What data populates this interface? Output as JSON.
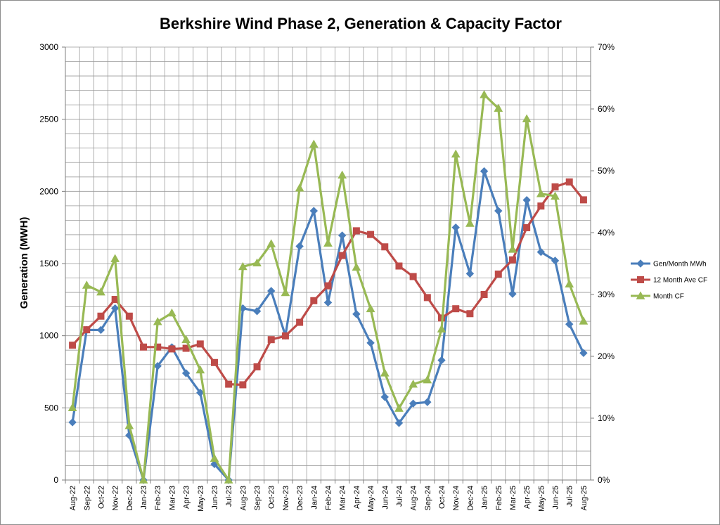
{
  "chart_data": {
    "type": "line",
    "title": "Berkshire Wind Phase 2, Generation & Capacity Factor",
    "ylabel": "Generation (MWH)",
    "ylim": [
      0,
      3000
    ],
    "y2lim": [
      0,
      0.7
    ],
    "yticks": [
      "0",
      "500",
      "1000",
      "1500",
      "2000",
      "2500",
      "3000"
    ],
    "y2ticks": [
      "0%",
      "10%",
      "20%",
      "30%",
      "40%",
      "50%",
      "60%",
      "70%"
    ],
    "grid": true,
    "legend_position": "right",
    "categories": [
      "Aug-22",
      "Sep-22",
      "Oct-22",
      "Nov-22",
      "Dec-22",
      "Jan-23",
      "Feb-23",
      "Mar-23",
      "Apr-23",
      "May-23",
      "Jun-23",
      "Jul-23",
      "Aug-23",
      "Sep-23",
      "Oct-23",
      "Nov-23",
      "Dec-23",
      "Jan-24",
      "Feb-24",
      "Mar-24",
      "Apr-24",
      "May-24",
      "Jun-24",
      "Jul-24",
      "Aug-24",
      "Sep-24",
      "Oct-24",
      "Nov-24",
      "Dec-24",
      "Jan-25",
      "Feb-25",
      "Mar-25",
      "Apr-25",
      "May-25",
      "Jun-25",
      "Jul-25",
      "Aug-25"
    ],
    "series": [
      {
        "name": "Gen/Month MWh",
        "axis": "left",
        "color": "#4a7ebb",
        "marker": "diamond",
        "values": [
          400,
          1040,
          1040,
          1190,
          310,
          0,
          790,
          920,
          740,
          605,
          110,
          0,
          1190,
          1170,
          1310,
          1000,
          1620,
          1865,
          1230,
          1695,
          1150,
          950,
          575,
          395,
          530,
          540,
          830,
          1750,
          1430,
          2140,
          1865,
          1290,
          1940,
          1580,
          1520,
          1080,
          880
        ]
      },
      {
        "name": "12 Month Ave CF",
        "axis": "right",
        "color": "#be4b48",
        "marker": "square",
        "values": [
          0.218,
          0.243,
          0.265,
          0.292,
          0.265,
          0.215,
          0.215,
          0.212,
          0.213,
          0.22,
          0.19,
          0.155,
          0.154,
          0.183,
          0.227,
          0.233,
          0.255,
          0.29,
          0.314,
          0.363,
          0.403,
          0.397,
          0.377,
          0.346,
          0.329,
          0.295,
          0.262,
          0.277,
          0.269,
          0.3,
          0.333,
          0.356,
          0.408,
          0.443,
          0.474,
          0.482,
          0.453
        ]
      },
      {
        "name": "Month CF",
        "axis": "right",
        "color": "#98b954",
        "marker": "triangle",
        "values": [
          0.117,
          0.315,
          0.304,
          0.358,
          0.088,
          0.0,
          0.256,
          0.27,
          0.227,
          0.178,
          0.035,
          0.0,
          0.345,
          0.351,
          0.382,
          0.303,
          0.472,
          0.543,
          0.383,
          0.493,
          0.344,
          0.277,
          0.173,
          0.116,
          0.155,
          0.162,
          0.244,
          0.527,
          0.415,
          0.623,
          0.601,
          0.373,
          0.584,
          0.463,
          0.459,
          0.317,
          0.257
        ]
      }
    ]
  }
}
